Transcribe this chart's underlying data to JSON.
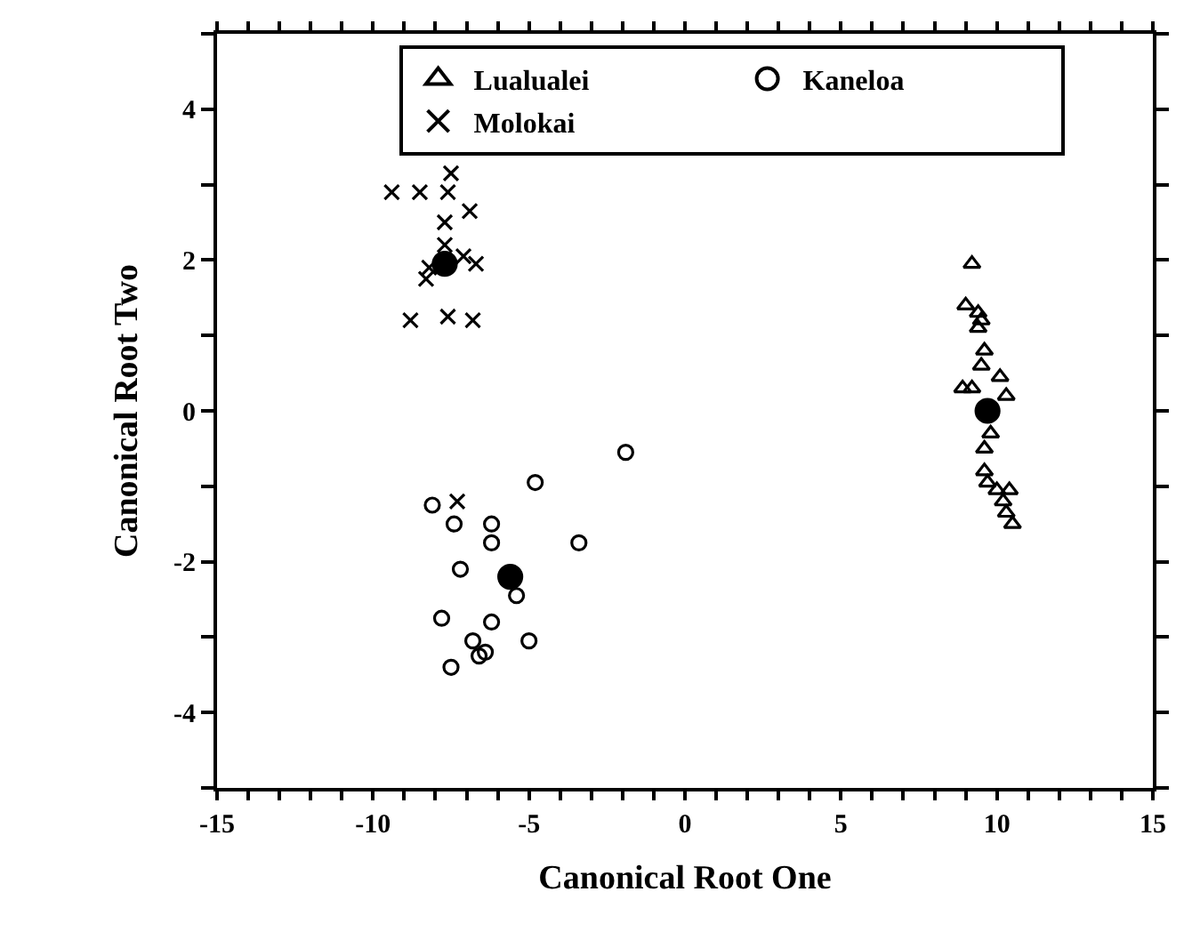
{
  "chart_data": {
    "type": "scatter",
    "xlabel": "Canonical Root One",
    "ylabel": "Canonical Root Two",
    "xlim": [
      -15,
      15
    ],
    "ylim": [
      -5,
      5
    ],
    "xticks": [
      -15,
      {
        "value": -14,
        "label": null
      },
      {
        "value": -13,
        "label": null
      },
      {
        "value": -12,
        "label": null
      },
      {
        "value": -11,
        "label": null
      },
      -10,
      {
        "value": -9,
        "label": null
      },
      {
        "value": -8,
        "label": null
      },
      {
        "value": -7,
        "label": null
      },
      {
        "value": -6,
        "label": null
      },
      -5,
      {
        "value": -4,
        "label": null
      },
      {
        "value": -3,
        "label": null
      },
      {
        "value": -2,
        "label": null
      },
      {
        "value": -1,
        "label": null
      },
      0,
      {
        "value": 1,
        "label": null
      },
      {
        "value": 2,
        "label": null
      },
      {
        "value": 3,
        "label": null
      },
      {
        "value": 4,
        "label": null
      },
      5,
      {
        "value": 6,
        "label": null
      },
      {
        "value": 7,
        "label": null
      },
      {
        "value": 8,
        "label": null
      },
      {
        "value": 9,
        "label": null
      },
      10,
      {
        "value": 11,
        "label": null
      },
      {
        "value": 12,
        "label": null
      },
      {
        "value": 13,
        "label": null
      },
      {
        "value": 14,
        "label": null
      },
      15
    ],
    "yticks": [
      {
        "value": -5,
        "label": null
      },
      -4,
      {
        "value": -3,
        "label": null
      },
      -2,
      {
        "value": -1,
        "label": null
      },
      0,
      {
        "value": 1,
        "label": null
      },
      2,
      {
        "value": 3,
        "label": null
      },
      4,
      {
        "value": 5,
        "label": null
      }
    ],
    "legend": "top",
    "series": [
      {
        "name": "Lualualei",
        "color": "#000000",
        "marker": "triangle",
        "x": [
          9.2,
          9.0,
          9.4,
          9.5,
          9.4,
          9.6,
          9.5,
          10.1,
          8.9,
          9.2,
          10.3,
          9.8,
          9.6,
          9.6,
          9.7,
          10.0,
          10.4,
          10.2,
          10.3,
          10.5
        ],
        "values": [
          1.95,
          1.4,
          1.3,
          1.2,
          1.1,
          0.8,
          0.6,
          0.45,
          0.3,
          0.3,
          0.2,
          -0.3,
          -0.5,
          -0.8,
          -0.95,
          -1.05,
          -1.05,
          -1.2,
          -1.35,
          -1.5
        ]
      },
      {
        "name": "Kaneloa",
        "color": "#000000",
        "marker": "circle",
        "x": [
          -1.9,
          -4.8,
          -8.1,
          -7.4,
          -6.2,
          -6.2,
          -3.4,
          -7.2,
          -5.4,
          -7.8,
          -6.2,
          -6.8,
          -5.0,
          -6.4,
          -6.6,
          -7.5
        ],
        "values": [
          -0.55,
          -0.95,
          -1.25,
          -1.5,
          -1.5,
          -1.75,
          -1.75,
          -2.1,
          -2.45,
          -2.75,
          -2.8,
          -3.05,
          -3.05,
          -3.2,
          -3.25,
          -3.4
        ]
      },
      {
        "name": "Molokai",
        "color": "#000000",
        "marker": "cross",
        "x": [
          -9.4,
          -8.5,
          -7.5,
          -7.6,
          -7.7,
          -6.9,
          -7.7,
          -7.1,
          -6.7,
          -8.2,
          -8.3,
          -8.8,
          -7.6,
          -6.8,
          -7.3
        ],
        "values": [
          2.9,
          2.9,
          3.15,
          2.9,
          2.5,
          2.65,
          2.2,
          2.05,
          1.95,
          1.9,
          1.75,
          1.2,
          1.25,
          1.2,
          -1.2
        ]
      },
      {
        "color": "#000000",
        "marker": "filled_circle",
        "x": [
          9.7,
          -5.6,
          -7.7
        ],
        "values": [
          0.0,
          -2.2,
          1.95
        ]
      }
    ]
  }
}
